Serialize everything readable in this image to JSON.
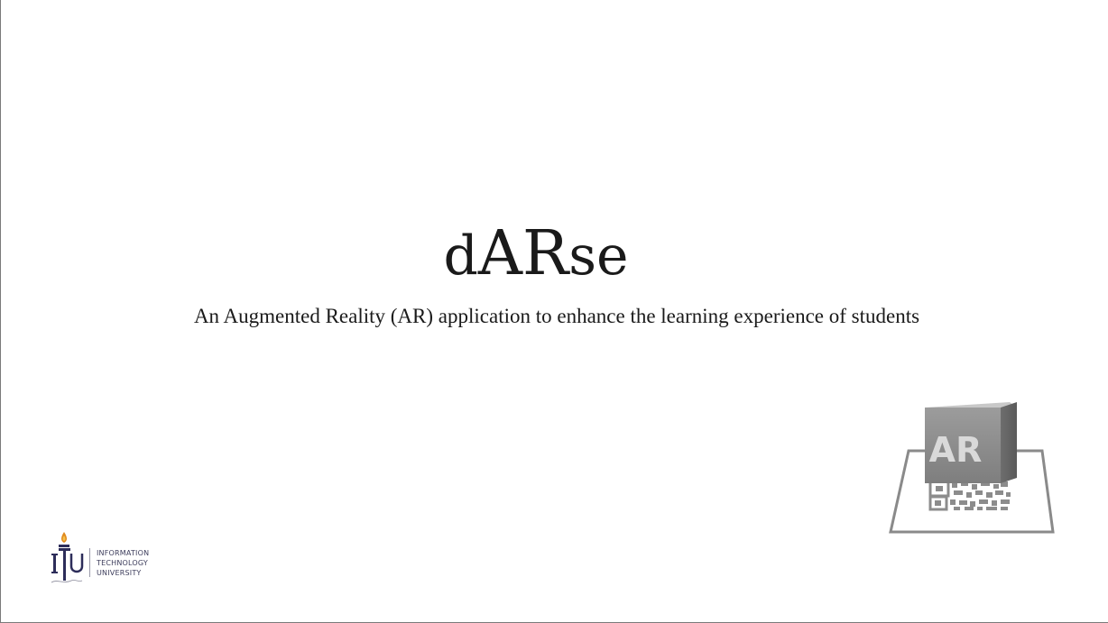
{
  "slide": {
    "title_parts": [
      "d",
      "AR",
      "se"
    ],
    "subtitle": "An Augmented Reality (AR) application to enhance the learning experience of students",
    "ar_badge_text": "AR",
    "logo": {
      "monogram": "ITU",
      "line1": "INFORMATION",
      "line2": "TECHNOLOGY",
      "line3": "UNIVERSITY"
    },
    "icons": [
      "ar-cube-icon",
      "itu-logo-icon"
    ]
  }
}
